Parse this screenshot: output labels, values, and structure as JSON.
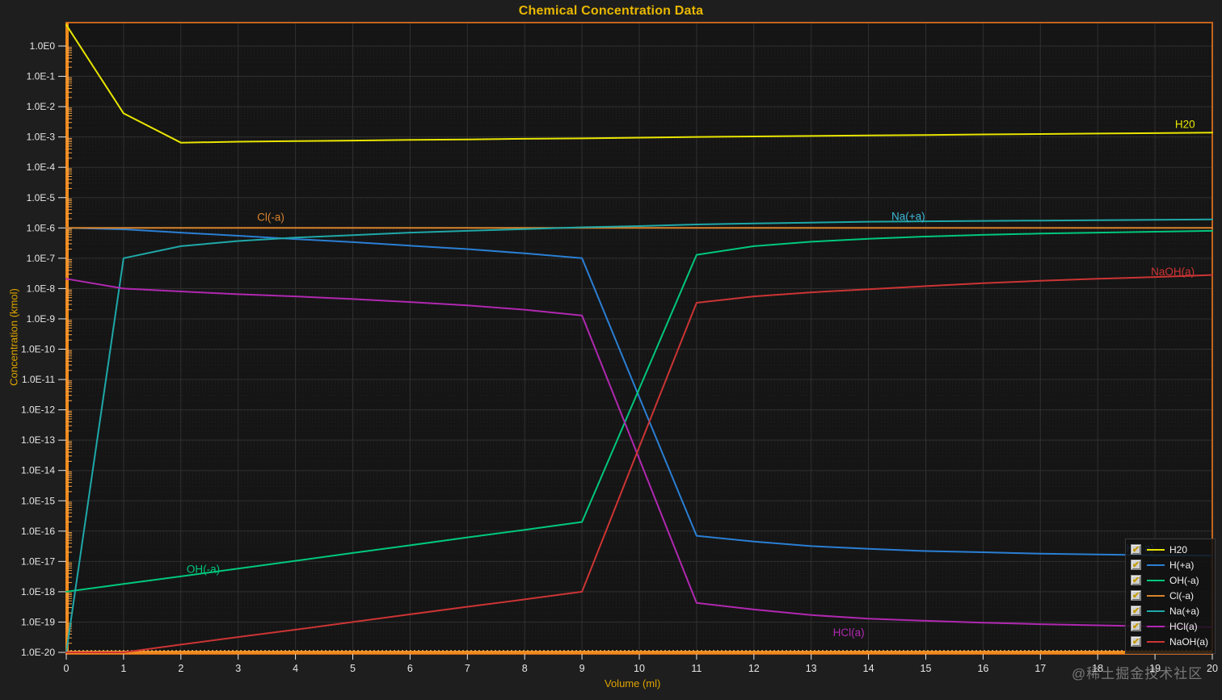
{
  "title": "Chemical Concentration Data",
  "watermark": "@稀土掘金技术社区",
  "colors": {
    "background": "#1e1e1e",
    "plot_background": "#151515",
    "frame": "#c3641c",
    "axis_bar": "#ef8a1e",
    "axis_minor_tick": "#f2a149",
    "grid_major": "#303030",
    "grid_minor": "#232323",
    "tick_label": "#e6e6e6",
    "gold_text": "#dfa400",
    "title_text": "#eab800"
  },
  "legend": {
    "items": [
      {
        "label": "H20",
        "color": "#e8e500",
        "checked": true
      },
      {
        "label": "H(+a)",
        "color": "#2a7fd4",
        "checked": true
      },
      {
        "label": "OH(-a)",
        "color": "#00c87d",
        "checked": true
      },
      {
        "label": "Cl(-a)",
        "color": "#d8842d",
        "checked": true
      },
      {
        "label": "Na(+a)",
        "color": "#1fa8a8",
        "checked": true
      },
      {
        "label": "HCl(a)",
        "color": "#b028b0",
        "checked": true
      },
      {
        "label": "NaOH(a)",
        "color": "#cc3434",
        "checked": true
      }
    ]
  },
  "chart_data": {
    "type": "line",
    "title": "Chemical Concentration Data",
    "xlabel": "Volume (ml)",
    "ylabel": "Concentration (kmol)",
    "x_scale": "linear",
    "y_scale": "log",
    "xlim": [
      0,
      20
    ],
    "ylim_log10": [
      0.78,
      -20.05
    ],
    "x_ticks": [
      0,
      1,
      2,
      3,
      4,
      5,
      6,
      7,
      8,
      9,
      10,
      11,
      12,
      13,
      14,
      15,
      16,
      17,
      18,
      19,
      20
    ],
    "y_tick_labels": [
      "1.0E0",
      "1.0E-1",
      "1.0E-2",
      "1.0E-3",
      "1.0E-4",
      "1.0E-5",
      "1.0E-6",
      "1.0E-7",
      "1.0E-8",
      "1.0E-9",
      "1.0E-10",
      "1.0E-11",
      "1.0E-12",
      "1.0E-13",
      "1.0E-14",
      "1.0E-15",
      "1.0E-16",
      "1.0E-17",
      "1.0E-18",
      "1.0E-19",
      "1.0E-20"
    ],
    "grid": true,
    "legend_position": "bottom-right",
    "series": [
      {
        "name": "H20",
        "color": "#e8e500",
        "points": [
          [
            0,
            5
          ],
          [
            1,
            0.006
          ],
          [
            2,
            0.00065
          ],
          [
            3,
            0.0007
          ],
          [
            4,
            0.00073
          ],
          [
            5,
            0.00076
          ],
          [
            6,
            0.0008
          ],
          [
            7,
            0.00083
          ],
          [
            8,
            0.00087
          ],
          [
            9,
            0.0009
          ],
          [
            10,
            0.00095
          ],
          [
            11,
            0.001
          ],
          [
            12,
            0.00104
          ],
          [
            13,
            0.00108
          ],
          [
            14,
            0.00112
          ],
          [
            15,
            0.00116
          ],
          [
            16,
            0.00121
          ],
          [
            17,
            0.00125
          ],
          [
            18,
            0.0013
          ],
          [
            19,
            0.00134
          ],
          [
            20,
            0.0014
          ]
        ]
      },
      {
        "name": "H(+a)",
        "color": "#2a7fd4",
        "points": [
          [
            0,
            1e-06
          ],
          [
            1,
            9e-07
          ],
          [
            2,
            7e-07
          ],
          [
            3,
            5.5e-07
          ],
          [
            4,
            4.3e-07
          ],
          [
            5,
            3.4e-07
          ],
          [
            6,
            2.6e-07
          ],
          [
            7,
            2e-07
          ],
          [
            8,
            1.45e-07
          ],
          [
            9,
            1e-07
          ],
          [
            10,
            2.6e-12
          ],
          [
            11,
            7e-17
          ],
          [
            12,
            4.5e-17
          ],
          [
            13,
            3.2e-17
          ],
          [
            14,
            2.6e-17
          ],
          [
            15,
            2.2e-17
          ],
          [
            16,
            2e-17
          ],
          [
            17,
            1.8e-17
          ],
          [
            18,
            1.7e-17
          ],
          [
            19,
            1.6e-17
          ],
          [
            20,
            1.55e-17
          ]
        ]
      },
      {
        "name": "OH(-a)",
        "color": "#00c87d",
        "points": [
          [
            0,
            1e-18
          ],
          [
            1,
            1.8e-18
          ],
          [
            2,
            3.2e-18
          ],
          [
            3,
            5.8e-18
          ],
          [
            4,
            1.05e-17
          ],
          [
            5,
            1.9e-17
          ],
          [
            6,
            3.4e-17
          ],
          [
            7,
            6.2e-17
          ],
          [
            8,
            1.1e-16
          ],
          [
            9,
            2e-16
          ],
          [
            10,
            5e-12
          ],
          [
            11,
            1.3e-07
          ],
          [
            12,
            2.5e-07
          ],
          [
            13,
            3.5e-07
          ],
          [
            14,
            4.4e-07
          ],
          [
            15,
            5.2e-07
          ],
          [
            16,
            5.9e-07
          ],
          [
            17,
            6.5e-07
          ],
          [
            18,
            7e-07
          ],
          [
            19,
            7.5e-07
          ],
          [
            20,
            8e-07
          ]
        ]
      },
      {
        "name": "Cl(-a)",
        "color": "#d8842d",
        "points": [
          [
            0,
            1e-06
          ],
          [
            5,
            1e-06
          ],
          [
            10,
            1e-06
          ],
          [
            15,
            1e-06
          ],
          [
            20,
            1e-06
          ]
        ]
      },
      {
        "name": "Na(+a)",
        "color": "#1fa8a8",
        "points": [
          [
            0,
            1e-20
          ],
          [
            1,
            1e-07
          ],
          [
            2,
            2.5e-07
          ],
          [
            3,
            3.7e-07
          ],
          [
            4,
            4.8e-07
          ],
          [
            5,
            5.8e-07
          ],
          [
            6,
            7e-07
          ],
          [
            7,
            8e-07
          ],
          [
            8,
            9.2e-07
          ],
          [
            9,
            1.05e-06
          ],
          [
            10,
            1.15e-06
          ],
          [
            11,
            1.3e-06
          ],
          [
            12,
            1.4e-06
          ],
          [
            13,
            1.5e-06
          ],
          [
            14,
            1.6e-06
          ],
          [
            15,
            1.65e-06
          ],
          [
            16,
            1.7e-06
          ],
          [
            17,
            1.75e-06
          ],
          [
            18,
            1.8e-06
          ],
          [
            19,
            1.85e-06
          ],
          [
            20,
            1.9e-06
          ]
        ]
      },
      {
        "name": "HCl(a)",
        "color": "#b028b0",
        "points": [
          [
            0,
            2.1e-08
          ],
          [
            1,
            1e-08
          ],
          [
            2,
            8e-09
          ],
          [
            3,
            6.5e-09
          ],
          [
            4,
            5.5e-09
          ],
          [
            5,
            4.5e-09
          ],
          [
            6,
            3.6e-09
          ],
          [
            7,
            2.8e-09
          ],
          [
            8,
            2e-09
          ],
          [
            9,
            1.3e-09
          ],
          [
            10,
            2.4e-14
          ],
          [
            11,
            4.3e-19
          ],
          [
            12,
            2.6e-19
          ],
          [
            13,
            1.7e-19
          ],
          [
            14,
            1.3e-19
          ],
          [
            15,
            1.1e-19
          ],
          [
            16,
            9.5e-20
          ],
          [
            17,
            8.5e-20
          ],
          [
            18,
            7.8e-20
          ],
          [
            19,
            7.2e-20
          ],
          [
            20,
            6.8e-20
          ]
        ]
      },
      {
        "name": "NaOH(a)",
        "color": "#cc3434",
        "points": [
          [
            0,
            1e-20
          ],
          [
            1,
            1e-20
          ],
          [
            2,
            1.8e-20
          ],
          [
            3,
            3.2e-20
          ],
          [
            4,
            5.6e-20
          ],
          [
            5,
            1e-19
          ],
          [
            6,
            1.8e-19
          ],
          [
            7,
            3.2e-19
          ],
          [
            8,
            5.6e-19
          ],
          [
            9,
            1e-18
          ],
          [
            10,
            6e-14
          ],
          [
            11,
            3.4e-09
          ],
          [
            12,
            5.5e-09
          ],
          [
            13,
            7.5e-09
          ],
          [
            14,
            9.5e-09
          ],
          [
            15,
            1.2e-08
          ],
          [
            16,
            1.5e-08
          ],
          [
            17,
            1.8e-08
          ],
          [
            18,
            2.1e-08
          ],
          [
            19,
            2.4e-08
          ],
          [
            20,
            2.8e-08
          ]
        ]
      }
    ],
    "annotations": [
      {
        "text": "H20",
        "color": "#e8e500",
        "vol": 19.35,
        "value": 0.002
      },
      {
        "text": "Cl(-a)",
        "color": "#d8842d",
        "vol": 3.33,
        "value": 1.7e-06
      },
      {
        "text": "Na(+a)",
        "color": "#3fb9d8",
        "vol": 14.4,
        "value": 1.85e-06
      },
      {
        "text": "NaOH(a)",
        "color": "#cc3434",
        "vol": 18.93,
        "value": 2.75e-08
      },
      {
        "text": "OH(-a)",
        "color": "#00c87d",
        "vol": 2.1,
        "value": 4.2e-18
      },
      {
        "text": "HCl(a)",
        "color": "#b028b0",
        "vol": 13.38,
        "value": 3.4e-20
      },
      {
        "text": "H(+a)",
        "color": "#2a7fd4",
        "vol": 18.5,
        "value": 2.1e-17
      }
    ]
  }
}
